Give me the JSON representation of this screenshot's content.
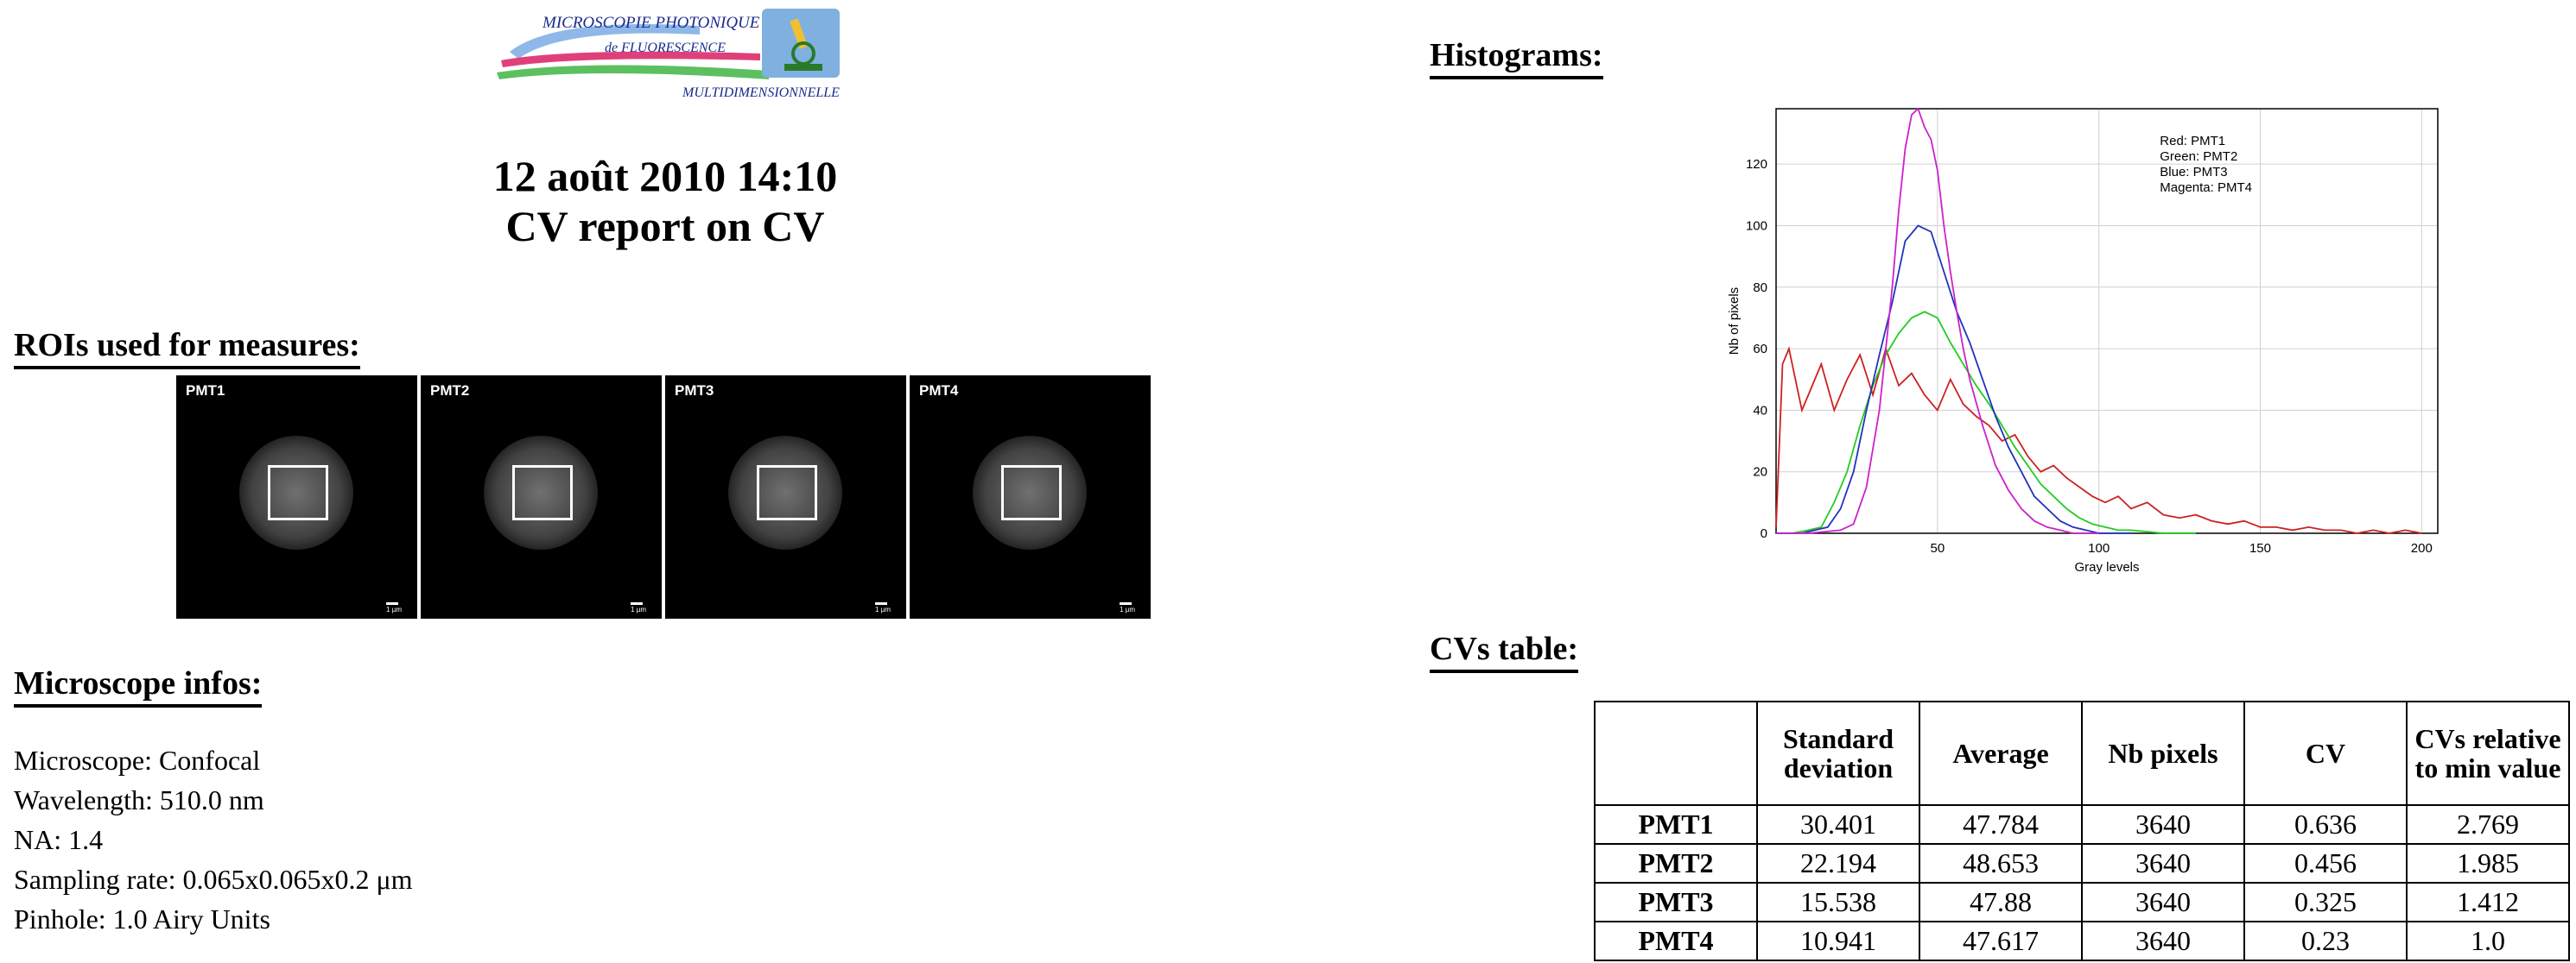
{
  "logo": {
    "line1": "MICROSCOPIE PHOTONIQUE",
    "line2": "de FLUORESCENCE",
    "line3": "MULTIDIMENSIONNELLE"
  },
  "title": {
    "line1": "12 août 2010 14:10",
    "line2": "CV report on CV"
  },
  "roi_section": {
    "heading": "ROIs used for measures:",
    "panels": [
      {
        "label": "PMT1",
        "scale": "1 µm"
      },
      {
        "label": "PMT2",
        "scale": "1 µm"
      },
      {
        "label": "PMT3",
        "scale": "1 µm"
      },
      {
        "label": "PMT4",
        "scale": "1 µm"
      }
    ]
  },
  "microscope": {
    "heading": "Microscope infos:",
    "lines": [
      "Microscope: Confocal",
      "Wavelength: 510.0 nm",
      "NA: 1.4",
      "Sampling rate: 0.065x0.065x0.2 μm",
      "Pinhole: 1.0 Airy Units"
    ]
  },
  "histograms": {
    "heading": "Histograms:"
  },
  "chart_data": {
    "type": "line",
    "xlabel": "Gray levels",
    "ylabel": "Nb of pixels",
    "xlim": [
      0,
      205
    ],
    "ylim": [
      0,
      138
    ],
    "xticks": [
      50,
      100,
      150,
      200
    ],
    "yticks": [
      0,
      20,
      40,
      60,
      80,
      100,
      120
    ],
    "grid": true,
    "legend_placement": "top-right",
    "legend": [
      "Red: PMT1",
      "Green: PMT2",
      "Blue: PMT3",
      "Magenta: PMT4"
    ],
    "series": [
      {
        "name": "PMT1",
        "color": "#cc2222",
        "x": [
          0,
          2,
          4,
          6,
          8,
          10,
          14,
          18,
          22,
          26,
          30,
          34,
          38,
          42,
          46,
          50,
          54,
          58,
          62,
          66,
          70,
          74,
          78,
          82,
          86,
          90,
          94,
          98,
          102,
          106,
          110,
          115,
          120,
          125,
          130,
          135,
          140,
          145,
          150,
          155,
          160,
          165,
          170,
          175,
          180,
          185,
          190,
          195,
          200
        ],
        "y": [
          2,
          55,
          60,
          50,
          40,
          45,
          55,
          40,
          50,
          58,
          45,
          60,
          48,
          52,
          45,
          40,
          50,
          42,
          38,
          35,
          30,
          32,
          25,
          20,
          22,
          18,
          15,
          12,
          10,
          12,
          8,
          10,
          6,
          5,
          6,
          4,
          3,
          4,
          2,
          2,
          1,
          2,
          1,
          1,
          0,
          1,
          0,
          1,
          0
        ]
      },
      {
        "name": "PMT2",
        "color": "#22cc22",
        "x": [
          0,
          5,
          10,
          14,
          18,
          22,
          26,
          30,
          34,
          38,
          42,
          46,
          50,
          54,
          58,
          62,
          66,
          70,
          74,
          78,
          82,
          86,
          90,
          94,
          98,
          102,
          106,
          110,
          120,
          130
        ],
        "y": [
          0,
          0,
          1,
          2,
          10,
          20,
          35,
          48,
          58,
          65,
          70,
          72,
          70,
          62,
          55,
          48,
          42,
          35,
          28,
          22,
          16,
          12,
          8,
          5,
          3,
          2,
          1,
          1,
          0,
          0
        ]
      },
      {
        "name": "PMT3",
        "color": "#2233bb",
        "x": [
          0,
          8,
          12,
          16,
          20,
          24,
          28,
          32,
          36,
          40,
          44,
          48,
          52,
          56,
          60,
          64,
          68,
          72,
          76,
          80,
          84,
          88,
          92,
          96,
          100,
          110
        ],
        "y": [
          0,
          0,
          1,
          2,
          8,
          20,
          40,
          58,
          75,
          95,
          100,
          98,
          85,
          72,
          62,
          50,
          38,
          28,
          20,
          12,
          8,
          4,
          2,
          1,
          0,
          0
        ]
      },
      {
        "name": "PMT4",
        "color": "#cc22cc",
        "x": [
          0,
          10,
          20,
          24,
          28,
          32,
          36,
          38,
          40,
          42,
          44,
          46,
          48,
          50,
          52,
          54,
          56,
          58,
          60,
          64,
          68,
          72,
          76,
          80,
          84,
          88,
          92,
          100
        ],
        "y": [
          0,
          0,
          1,
          3,
          15,
          40,
          80,
          105,
          125,
          136,
          138,
          132,
          128,
          118,
          100,
          85,
          72,
          60,
          50,
          35,
          22,
          14,
          8,
          4,
          2,
          1,
          0,
          0
        ]
      }
    ]
  },
  "cv_section": {
    "heading": "CVs table:",
    "columns": [
      "",
      "Standard deviation",
      "Average",
      "Nb pixels",
      "CV",
      "CVs relative to min value"
    ],
    "rows": [
      [
        "PMT1",
        "30.401",
        "47.784",
        "3640",
        "0.636",
        "2.769"
      ],
      [
        "PMT2",
        "22.194",
        "48.653",
        "3640",
        "0.456",
        "1.985"
      ],
      [
        "PMT3",
        "15.538",
        "47.88",
        "3640",
        "0.325",
        "1.412"
      ],
      [
        "PMT4",
        "10.941",
        "47.617",
        "3640",
        "0.23",
        "1.0"
      ]
    ]
  }
}
